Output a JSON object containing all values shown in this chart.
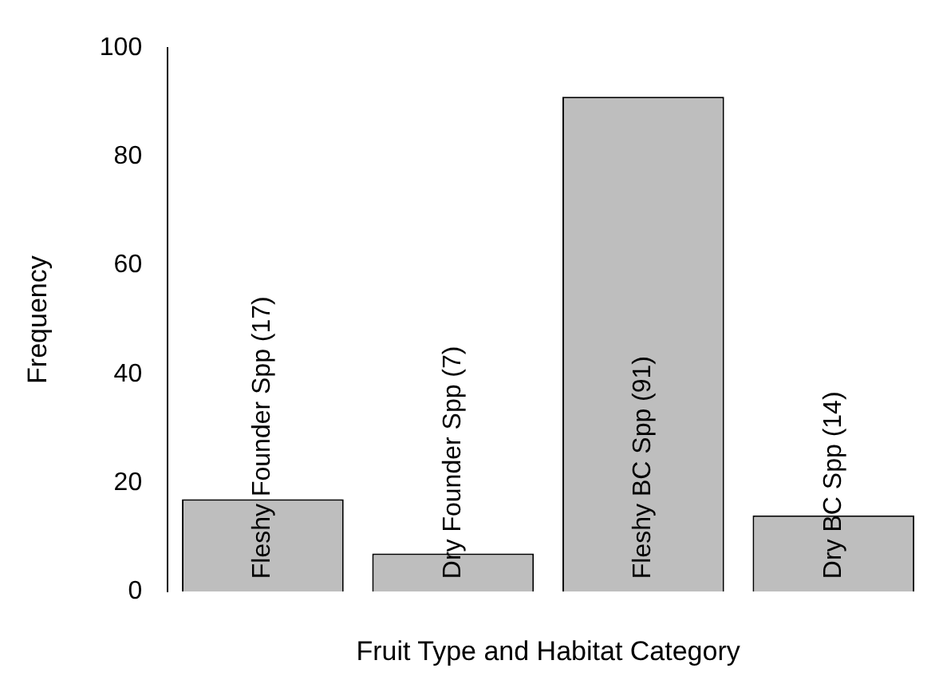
{
  "chart_data": {
    "type": "bar",
    "xlabel": "Fruit Type and Habitat Category",
    "ylabel": "Frequency",
    "categories": [
      "Fleshy Founder Spp (17)",
      "Dry Founder Spp (7)",
      "Fleshy BC Spp (91)",
      "Dry BC Spp (14)"
    ],
    "values": [
      17,
      7,
      91,
      14
    ],
    "color": "#bebebe",
    "ylim": [
      0,
      100
    ],
    "yticks": [
      0,
      20,
      40,
      60,
      80,
      100
    ],
    "grid": false,
    "legend": false
  }
}
